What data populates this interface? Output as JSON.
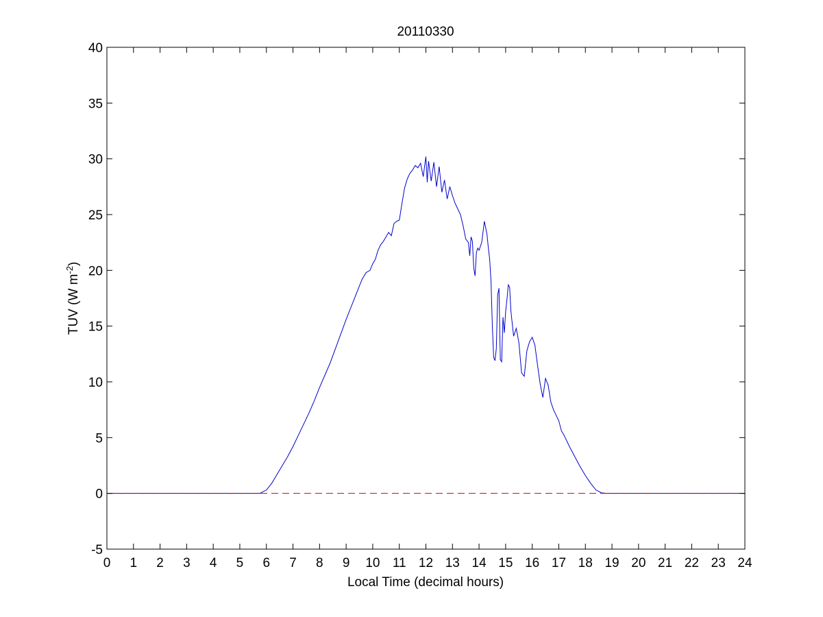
{
  "chart_data": {
    "type": "line",
    "title": "20110330",
    "xlabel": "Local Time (decimal hours)",
    "ylabel_main": "TUV (W m",
    "ylabel_sup": "-2",
    "ylabel_close": ")",
    "xlim": [
      0,
      24
    ],
    "ylim": [
      -5,
      40
    ],
    "xticks": [
      0,
      1,
      2,
      3,
      4,
      5,
      6,
      7,
      8,
      9,
      10,
      11,
      12,
      13,
      14,
      15,
      16,
      17,
      18,
      19,
      20,
      21,
      22,
      23,
      24
    ],
    "yticks": [
      -5,
      0,
      5,
      10,
      15,
      20,
      25,
      30,
      35,
      40
    ],
    "grid": false,
    "series": [
      {
        "color": "#0000cc",
        "style": "solid",
        "x": [
          0,
          5.75,
          6.0,
          6.2,
          6.4,
          6.6,
          6.8,
          7.0,
          7.2,
          7.4,
          7.6,
          7.8,
          8.0,
          8.2,
          8.4,
          8.6,
          8.8,
          9.0,
          9.2,
          9.4,
          9.6,
          9.75,
          9.9,
          10.0,
          10.1,
          10.2,
          10.3,
          10.4,
          10.5,
          10.6,
          10.7,
          10.8,
          10.9,
          11.0,
          11.1,
          11.2,
          11.3,
          11.4,
          11.5,
          11.6,
          11.7,
          11.8,
          11.9,
          12.0,
          12.05,
          12.1,
          12.2,
          12.3,
          12.4,
          12.5,
          12.6,
          12.7,
          12.8,
          12.9,
          13.0,
          13.1,
          13.2,
          13.3,
          13.4,
          13.5,
          13.6,
          13.65,
          13.7,
          13.75,
          13.8,
          13.85,
          13.9,
          13.95,
          14.0,
          14.1,
          14.2,
          14.3,
          14.35,
          14.4,
          14.45,
          14.5,
          14.55,
          14.6,
          14.65,
          14.7,
          14.75,
          14.8,
          14.85,
          14.9,
          14.95,
          15.0,
          15.05,
          15.1,
          15.15,
          15.2,
          15.3,
          15.4,
          15.5,
          15.6,
          15.7,
          15.8,
          15.9,
          16.0,
          16.1,
          16.2,
          16.3,
          16.4,
          16.5,
          16.6,
          16.7,
          16.8,
          16.9,
          17.0,
          17.1,
          17.2,
          17.4,
          17.6,
          17.8,
          18.0,
          18.2,
          18.4,
          18.6,
          18.8,
          24
        ],
        "y": [
          0,
          0,
          0.3,
          0.9,
          1.7,
          2.5,
          3.3,
          4.2,
          5.2,
          6.2,
          7.2,
          8.3,
          9.5,
          10.6,
          11.7,
          13.0,
          14.3,
          15.6,
          16.8,
          18.0,
          19.2,
          19.8,
          20.0,
          20.6,
          21.0,
          21.8,
          22.3,
          22.6,
          23.0,
          23.4,
          23.1,
          24.2,
          24.4,
          24.5,
          26.0,
          27.4,
          28.2,
          28.7,
          29.0,
          29.4,
          29.2,
          29.6,
          28.4,
          30.2,
          27.9,
          29.8,
          28.0,
          29.7,
          27.5,
          29.3,
          27.0,
          28.1,
          26.4,
          27.5,
          26.7,
          26.0,
          25.5,
          25.0,
          24.0,
          22.8,
          22.5,
          21.3,
          23.0,
          22.6,
          20.2,
          19.5,
          21.6,
          22.0,
          21.8,
          22.5,
          24.4,
          23.2,
          22.0,
          21.0,
          19.0,
          15.0,
          12.2,
          11.9,
          13.0,
          17.8,
          18.4,
          12.0,
          11.8,
          15.8,
          14.4,
          16.3,
          17.4,
          18.7,
          18.5,
          16.3,
          14.1,
          14.8,
          13.5,
          10.8,
          10.5,
          12.8,
          13.6,
          14.0,
          13.3,
          11.5,
          9.8,
          8.6,
          10.3,
          9.7,
          8.2,
          7.5,
          7.0,
          6.5,
          5.6,
          5.2,
          4.2,
          3.3,
          2.4,
          1.6,
          0.9,
          0.3,
          0.05,
          0,
          0
        ]
      },
      {
        "color": "#cc0000",
        "style": "dashed",
        "x": [
          0,
          24
        ],
        "y": [
          0,
          0
        ]
      }
    ]
  }
}
